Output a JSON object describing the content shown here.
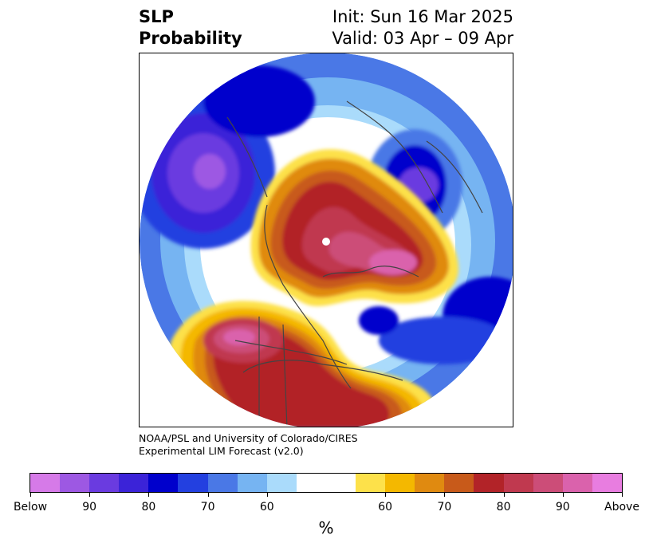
{
  "title": {
    "left_line1": "SLP",
    "left_line2": "Probability",
    "right_line1": "Init: Sun 16 Mar 2025",
    "right_line2": "Valid: 03 Apr – 09 Apr"
  },
  "credit": {
    "line1": "NOAA/PSL and University of Colorado/CIRES",
    "line2": "Experimental LIM Forecast (v2.0)"
  },
  "colorbar": {
    "units": "%",
    "colors": [
      "#d67ae8",
      "#9d58e3",
      "#6a3be0",
      "#3b23d8",
      "#0000cc",
      "#2340e0",
      "#4a78e6",
      "#76b4f2",
      "#aadbfb",
      "#ffffff",
      "#ffffff",
      "#fde14a",
      "#f4b800",
      "#e08a10",
      "#c85a1a",
      "#b22328",
      "#c0394f",
      "#cc4d78",
      "#da62ac",
      "#e87de0"
    ],
    "tick_labels": [
      "Below",
      "90",
      "80",
      "70",
      "60",
      "60",
      "70",
      "80",
      "90",
      "Above"
    ]
  }
}
